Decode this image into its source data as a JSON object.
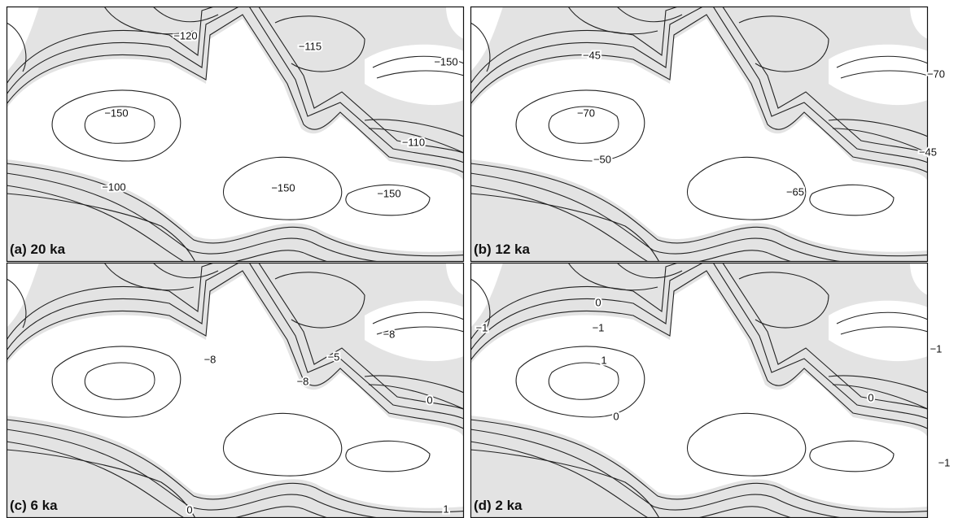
{
  "panels": [
    {
      "label": "(a) 20 ka",
      "contour_labels": [
        "−120",
        "−115",
        "−150",
        "−150",
        "−110",
        "−100",
        "−150",
        "−150"
      ]
    },
    {
      "label": "(b) 12 ka",
      "contour_labels": [
        "−45",
        "−70",
        "−70",
        "−50",
        "−45",
        "−65"
      ]
    },
    {
      "label": "(c) 6 ka",
      "contour_labels": [
        "−8",
        "−8",
        "−5",
        "0",
        "−8",
        "0",
        "1"
      ]
    },
    {
      "label": "(d) 2 ka",
      "contour_labels": [
        "0",
        "−1",
        "−1",
        "−1",
        "1",
        "0",
        "0",
        "−1"
      ]
    }
  ]
}
